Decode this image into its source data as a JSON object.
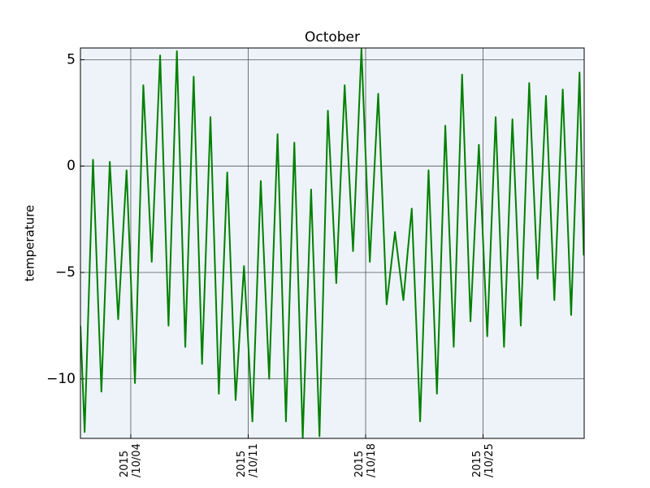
{
  "chart_data": {
    "type": "line",
    "title": "October",
    "y_label": "temperature",
    "color": "#008000",
    "background": "#edf3f9",
    "grid": true,
    "xlim": [
      "2015-10-01 00:00",
      "2015-10-31 00:40"
    ],
    "xticks": [
      {
        "value": "2015-10-04 00:00",
        "label": "2015\n/10/04"
      },
      {
        "value": "2015-10-11 00:00",
        "label": "2015\n/10/11"
      },
      {
        "value": "2015-10-18 00:00",
        "label": "2015\n/10/18"
      },
      {
        "value": "2015-10-25 00:00",
        "label": "2015\n/10/25"
      }
    ],
    "ylim": [
      -12.8,
      5.55
    ],
    "yticks": [
      {
        "value": -10,
        "label": "−10"
      },
      {
        "value": -5,
        "label": "−5"
      },
      0,
      5
    ],
    "x": [
      "2015-10-01 00:00",
      "2015-10-01 06:00",
      "2015-10-01 12:00",
      "2015-10-01 18:00",
      "2015-10-02 00:00",
      "2015-10-02 06:00",
      "2015-10-02 12:00",
      "2015-10-02 18:00",
      "2015-10-03 00:00",
      "2015-10-03 06:00",
      "2015-10-03 12:00",
      "2015-10-03 18:00",
      "2015-10-04 00:00",
      "2015-10-04 06:00",
      "2015-10-04 12:00",
      "2015-10-04 18:00",
      "2015-10-05 00:00",
      "2015-10-05 06:00",
      "2015-10-05 12:00",
      "2015-10-05 18:00",
      "2015-10-06 00:00",
      "2015-10-06 06:00",
      "2015-10-06 12:00",
      "2015-10-06 18:00",
      "2015-10-07 00:00",
      "2015-10-07 06:00",
      "2015-10-07 12:00",
      "2015-10-07 18:00",
      "2015-10-08 00:00",
      "2015-10-08 06:00",
      "2015-10-08 12:00",
      "2015-10-08 18:00",
      "2015-10-09 00:00",
      "2015-10-09 06:00",
      "2015-10-09 12:00",
      "2015-10-09 18:00",
      "2015-10-10 00:00",
      "2015-10-10 06:00",
      "2015-10-10 12:00",
      "2015-10-10 18:00",
      "2015-10-11 00:00",
      "2015-10-11 06:00",
      "2015-10-11 12:00",
      "2015-10-11 18:00",
      "2015-10-12 00:00",
      "2015-10-12 06:00",
      "2015-10-12 12:00",
      "2015-10-12 18:00",
      "2015-10-13 00:00",
      "2015-10-13 06:00",
      "2015-10-13 12:00",
      "2015-10-13 18:00",
      "2015-10-14 00:00",
      "2015-10-14 06:00",
      "2015-10-14 12:00",
      "2015-10-14 18:00",
      "2015-10-15 00:00",
      "2015-10-15 06:00",
      "2015-10-15 12:00",
      "2015-10-15 18:00",
      "2015-10-16 00:00",
      "2015-10-16 06:00",
      "2015-10-16 12:00",
      "2015-10-16 18:00",
      "2015-10-17 00:00",
      "2015-10-17 06:00",
      "2015-10-17 12:00",
      "2015-10-17 18:00",
      "2015-10-18 00:00",
      "2015-10-18 06:00",
      "2015-10-18 12:00",
      "2015-10-18 18:00",
      "2015-10-19 00:00",
      "2015-10-19 06:00",
      "2015-10-19 12:00",
      "2015-10-19 18:00",
      "2015-10-20 00:00",
      "2015-10-20 06:00",
      "2015-10-20 12:00",
      "2015-10-20 18:00",
      "2015-10-21 00:00",
      "2015-10-21 06:00",
      "2015-10-21 12:00",
      "2015-10-21 18:00",
      "2015-10-22 00:00",
      "2015-10-22 06:00",
      "2015-10-22 12:00",
      "2015-10-22 18:00",
      "2015-10-23 00:00",
      "2015-10-23 06:00",
      "2015-10-23 12:00",
      "2015-10-23 18:00",
      "2015-10-24 00:00",
      "2015-10-24 06:00",
      "2015-10-24 12:00",
      "2015-10-24 18:00",
      "2015-10-25 00:00",
      "2015-10-25 06:00",
      "2015-10-25 12:00",
      "2015-10-25 18:00",
      "2015-10-26 00:00",
      "2015-10-26 06:00",
      "2015-10-26 12:00",
      "2015-10-26 18:00",
      "2015-10-27 00:00",
      "2015-10-27 06:00",
      "2015-10-27 12:00",
      "2015-10-27 18:00",
      "2015-10-28 00:00",
      "2015-10-28 06:00",
      "2015-10-28 12:00",
      "2015-10-28 18:00",
      "2015-10-29 00:00",
      "2015-10-29 06:00",
      "2015-10-29 12:00",
      "2015-10-29 18:00",
      "2015-10-30 00:00",
      "2015-10-30 06:00",
      "2015-10-30 12:00",
      "2015-10-30 18:00",
      "2015-10-31 00:00"
    ],
    "values": [
      -7.5,
      -12.5,
      -6.1,
      0.3,
      -5.2,
      -10.6,
      -5.2,
      0.2,
      -3.5,
      -7.2,
      -3.7,
      -0.2,
      -5.2,
      -10.2,
      -3.2,
      3.8,
      -0.3,
      -4.5,
      0.4,
      5.2,
      -1.2,
      -7.5,
      -1.1,
      5.4,
      -1.6,
      -8.5,
      -2.2,
      4.2,
      -2.6,
      -9.3,
      -3.5,
      2.3,
      -4.2,
      -10.7,
      -5.5,
      -0.3,
      -5.6,
      -11,
      -7.8,
      -4.7,
      -8.3,
      -12,
      -6.3,
      -0.7,
      -5.4,
      -10,
      -4.2,
      1.5,
      -5.2,
      -12,
      -5.4,
      1.1,
      -5.8,
      -12.8,
      -6.9,
      -1.1,
      -6.9,
      -12.7,
      -5,
      2.6,
      -1.4,
      -5.5,
      -0.8,
      3.8,
      -0.1,
      -4,
      0.7,
      5.5,
      0.5,
      -4.5,
      -0.5,
      3.4,
      -1.5,
      -6.5,
      -4.8,
      -3.1,
      -4.7,
      -6.3,
      -4.1,
      -2.0,
      -7,
      -12,
      -6.1,
      -0.2,
      -5.4,
      -10.7,
      -4.4,
      1.9,
      -3.3,
      -8.5,
      -2.1,
      4.3,
      -1.5,
      -7.3,
      -3.1,
      1.0,
      -3.5,
      -8,
      -2.8,
      2.3,
      -3.1,
      -8.5,
      -3.1,
      2.2,
      -2.6,
      -7.5,
      -1.8,
      3.9,
      -0.7,
      -5.3,
      -1,
      3.3,
      -1.5,
      -6.3,
      -1.4,
      3.6,
      -1.7,
      -7,
      -1.3,
      4.4,
      -4.2
    ]
  }
}
